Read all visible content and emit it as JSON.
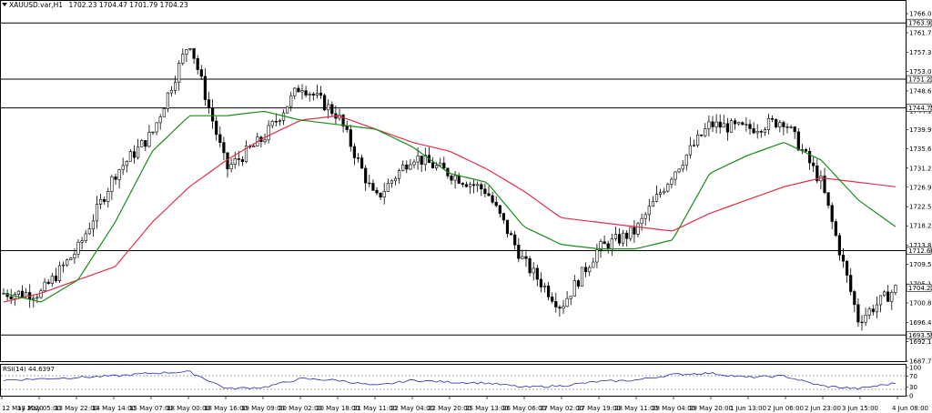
{
  "header": {
    "symbol": "XAUUSD.var,H1",
    "ohlc": "1702.23 1704.47 1701.79 1704.23",
    "menu_icon": "triangle-down-icon"
  },
  "rsi": {
    "label": "RSI(14) 44.6397",
    "axis_labels": [
      "100",
      "70",
      "30",
      "0"
    ]
  },
  "price_axis": {
    "labels": [
      "1766.00",
      "1761.70",
      "1757.30",
      "1753.00",
      "1748.60",
      "1744.10",
      "1739.90",
      "1735.60",
      "1731.20",
      "1726.90",
      "1722.50",
      "1718.20",
      "1713.80",
      "1709.50",
      "1705.10",
      "1700.80",
      "1696.40",
      "1692.10",
      "1687.70"
    ],
    "current_price": "1704.23"
  },
  "levels": [
    "1763.91",
    "1751.23",
    "1744.75",
    "1712.60",
    "1693.59"
  ],
  "time_axis": [
    "12 May 2020",
    "13 May 05:00",
    "13 May 22:00",
    "14 May 14:00",
    "15 May 07:00",
    "18 May 00:00",
    "18 May 16:00",
    "19 May 09:00",
    "20 May 02:00",
    "20 May 18:00",
    "21 May 11:00",
    "22 May 04:00",
    "22 May 20:00",
    "25 May 13:00",
    "26 May 06:00",
    "27 May 02:00",
    "27 May 19:00",
    "28 May 11:00",
    "29 May 04:00",
    "29 May 20:00",
    "1 Jun 13:00",
    "2 Jun 06:00",
    "2 Jun 23:00",
    "3 Jun 15:00",
    "4 Jun 08:00"
  ],
  "colors": {
    "candle": "#000000",
    "ma_fast": "#1a8c1a",
    "ma_slow": "#e0304a",
    "rsi_line": "#2a2ab8"
  },
  "chart_data": {
    "type": "line",
    "title": "XAUUSD.var,H1",
    "y_range": [
      1687.7,
      1766.0
    ],
    "x": [
      "12 May 2020",
      "13 May 05:00",
      "13 May 22:00",
      "14 May 14:00",
      "15 May 07:00",
      "18 May 00:00",
      "18 May 16:00",
      "19 May 09:00",
      "20 May 02:00",
      "20 May 18:00",
      "21 May 11:00",
      "22 May 04:00",
      "22 May 20:00",
      "25 May 13:00",
      "26 May 06:00",
      "27 May 02:00",
      "27 May 19:00",
      "28 May 11:00",
      "29 May 04:00",
      "29 May 20:00",
      "1 Jun 13:00",
      "2 Jun 06:00",
      "2 Jun 23:00",
      "3 Jun 15:00",
      "4 Jun 08:00"
    ],
    "series": [
      {
        "values": [
          1703,
          1703,
          1713,
          1730,
          1739,
          1760,
          1731,
          1738,
          1750,
          1743,
          1724,
          1734,
          1730,
          1726,
          1710,
          1700,
          1713,
          1717,
          1730,
          1741,
          1740,
          1742,
          1728,
          1697,
          1704
        ]
      },
      {
        "values": [
          1703,
          1701,
          1706,
          1719,
          1735,
          1743,
          1743,
          1744,
          1742,
          1741,
          1740,
          1736,
          1730,
          1728,
          1718,
          1714,
          1713,
          1713,
          1715,
          1730,
          1734,
          1737,
          1733,
          1724,
          1718
        ]
      },
      {
        "values": [
          1701,
          1703,
          1706,
          1709,
          1719,
          1727,
          1733,
          1738,
          1742,
          1743,
          1740,
          1737,
          1735,
          1731,
          1726,
          1720,
          1719,
          1718,
          1717,
          1721,
          1724,
          1727,
          1729,
          1728,
          1727
        ]
      }
    ],
    "rsi": {
      "range": [
        0,
        100
      ],
      "levels": [
        70,
        30
      ],
      "values": [
        55,
        60,
        65,
        70,
        80,
        85,
        25,
        30,
        60,
        55,
        35,
        55,
        48,
        45,
        30,
        35,
        50,
        55,
        75,
        80,
        65,
        70,
        35,
        25,
        44.6
      ]
    }
  }
}
